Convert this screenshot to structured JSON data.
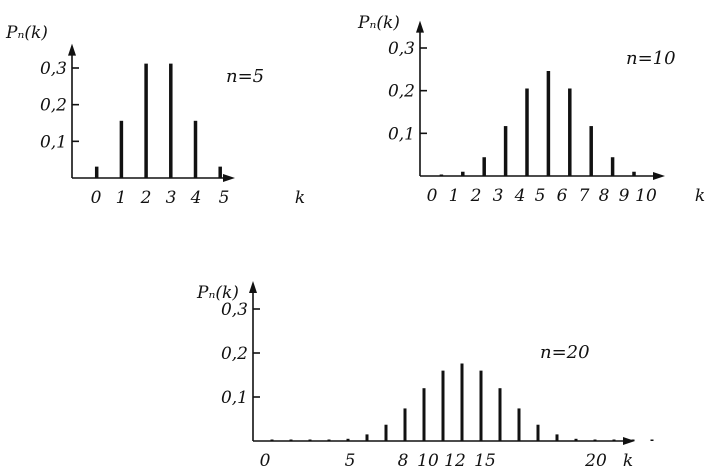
{
  "chart_data": [
    {
      "type": "bar",
      "ylabel": "Pₙ(k)",
      "xlabel": "k",
      "annotation": "n=5",
      "x": [
        0,
        1,
        2,
        3,
        4,
        5
      ],
      "values": [
        0.031,
        0.156,
        0.312,
        0.312,
        0.156,
        0.031
      ],
      "xticks": [
        "0",
        "1",
        "2",
        "3",
        "4",
        "5"
      ],
      "yticks": [
        "0,1",
        "0,2",
        "0,3"
      ],
      "ylim": [
        0,
        0.35
      ],
      "xlim": [
        0,
        6.5
      ]
    },
    {
      "type": "bar",
      "ylabel": "Pₙ(k)",
      "xlabel": "k",
      "annotation": "n=10",
      "x": [
        0,
        1,
        2,
        3,
        4,
        5,
        6,
        7,
        8,
        9,
        10
      ],
      "values": [
        0.001,
        0.01,
        0.044,
        0.117,
        0.205,
        0.246,
        0.205,
        0.117,
        0.044,
        0.01,
        0.001
      ],
      "xticks": [
        "0",
        "1",
        "2",
        "3",
        "4",
        "5",
        "6",
        "7",
        "8",
        "9",
        "10"
      ],
      "yticks": [
        "0,1",
        "0,2",
        "0,3"
      ],
      "ylim": [
        0,
        0.35
      ],
      "xlim": [
        0,
        11
      ]
    },
    {
      "type": "bar",
      "ylabel": "Pₙ(k)",
      "xlabel": "k",
      "annotation": "n=20",
      "x": [
        0,
        1,
        2,
        3,
        4,
        5,
        6,
        7,
        8,
        9,
        10,
        11,
        12,
        13,
        14,
        15,
        16,
        17,
        18,
        19,
        20
      ],
      "values": [
        0.0,
        0.0,
        0.0,
        0.001,
        0.005,
        0.015,
        0.037,
        0.074,
        0.12,
        0.16,
        0.176,
        0.16,
        0.12,
        0.074,
        0.037,
        0.015,
        0.005,
        0.001,
        0.0,
        0.0,
        0.0
      ],
      "xticks": [
        "0",
        "5",
        "8",
        "10",
        "12",
        "15",
        "20"
      ],
      "yticks": [
        "0,1",
        "0,2",
        "0,3"
      ],
      "ylim": [
        0,
        0.35
      ],
      "xlim": [
        0,
        22
      ]
    }
  ]
}
